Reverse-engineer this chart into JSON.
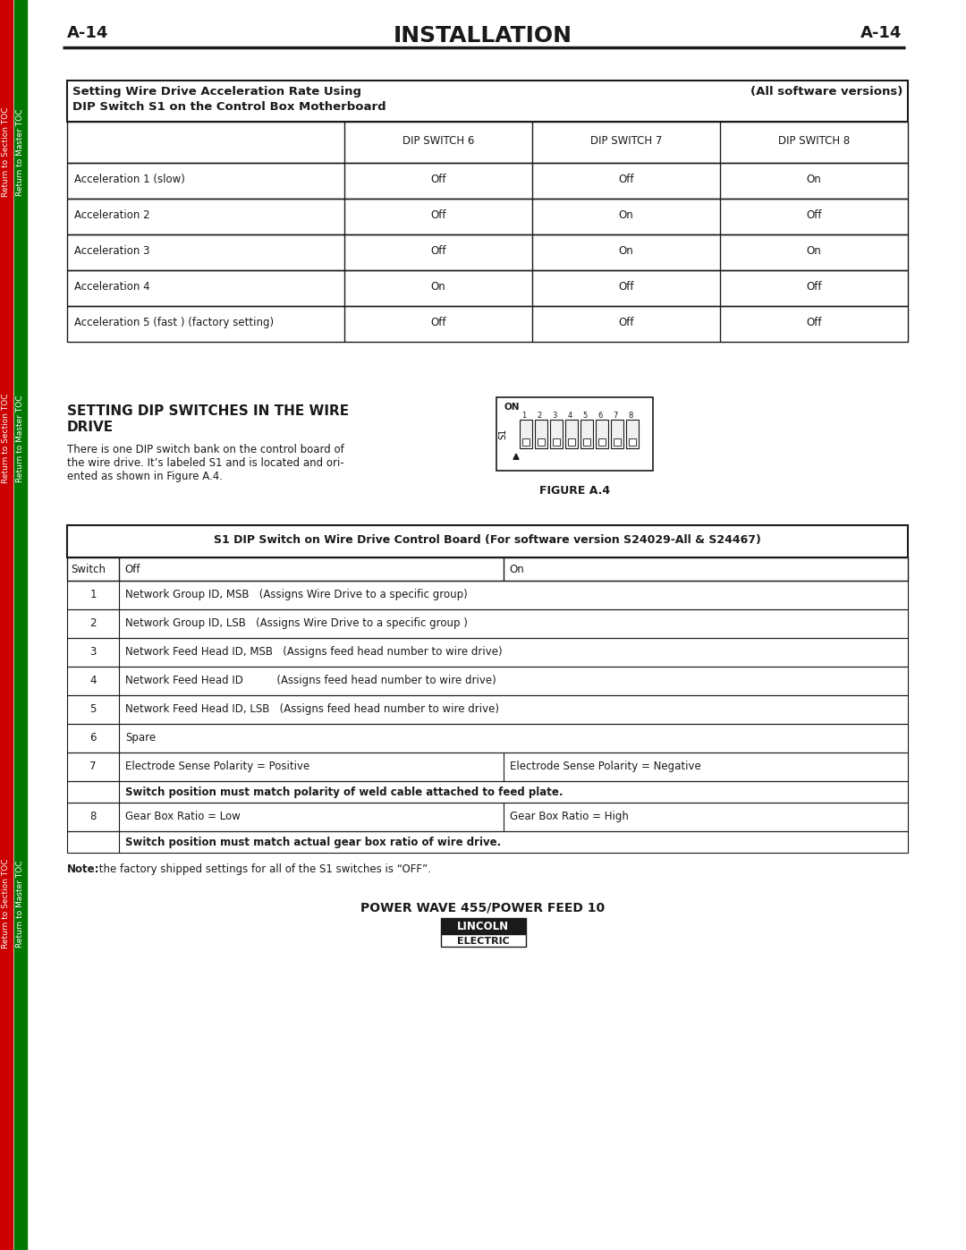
{
  "page_label": "A-14",
  "page_title": "INSTALLATION",
  "bg_color": "#ffffff",
  "sidebar_red": "#cc0000",
  "sidebar_green": "#007700",
  "table1_title_left": "Setting Wire Drive Acceleration Rate Using",
  "table1_title_right": "(All software versions)",
  "table1_title2": "DIP Switch S1 on the Control Box Motherboard",
  "table1_headers": [
    "",
    "DIP SWITCH 6",
    "DIP SWITCH 7",
    "DIP SWITCH 8"
  ],
  "table1_rows": [
    [
      "Acceleration 1 (slow)",
      "Off",
      "Off",
      "On"
    ],
    [
      "Acceleration 2",
      "Off",
      "On",
      "Off"
    ],
    [
      "Acceleration 3",
      "Off",
      "On",
      "On"
    ],
    [
      "Acceleration 4",
      "On",
      "Off",
      "Off"
    ],
    [
      "Acceleration 5 (fast ) (factory setting)",
      "Off",
      "Off",
      "Off"
    ]
  ],
  "section_title_line1": "SETTING DIP SWITCHES IN THE WIRE",
  "section_title_line2": "DRIVE",
  "section_body_lines": [
    "There is one DIP switch bank on the control board of",
    "the wire drive. It’s labeled S1 and is located and ori-",
    "ented as shown in Figure A.4."
  ],
  "figure_label": "FIGURE A.4",
  "table2_title": "S1 DIP Switch on Wire Drive Control Board (For software version S24029-All & S24467)",
  "table2_col_headers": [
    "Switch",
    "Off",
    "On"
  ],
  "table2_rows": [
    {
      "type": "data",
      "switch": "1",
      "off": "Network Group ID, MSB   (Assigns Wire Drive to a specific group)",
      "on": ""
    },
    {
      "type": "data",
      "switch": "2",
      "off": "Network Group ID, LSB   (Assigns Wire Drive to a specific group )",
      "on": ""
    },
    {
      "type": "data",
      "switch": "3",
      "off": "Network Feed Head ID, MSB   (Assigns feed head number to wire drive)",
      "on": ""
    },
    {
      "type": "data",
      "switch": "4",
      "off": "Network Feed Head ID          (Assigns feed head number to wire drive)",
      "on": ""
    },
    {
      "type": "data",
      "switch": "5",
      "off": "Network Feed Head ID, LSB   (Assigns feed head number to wire drive)",
      "on": ""
    },
    {
      "type": "data",
      "switch": "6",
      "off": "Spare",
      "on": ""
    },
    {
      "type": "data",
      "switch": "7",
      "off": "Electrode Sense Polarity = Positive",
      "on": "Electrode Sense Polarity = Negative"
    },
    {
      "type": "note",
      "switch": "",
      "text": "Switch position must match polarity of weld cable attached to feed plate."
    },
    {
      "type": "data",
      "switch": "8",
      "off": "Gear Box Ratio = Low",
      "on": "Gear Box Ratio = High"
    },
    {
      "type": "note",
      "switch": "",
      "text": "Switch position must match actual gear box ratio of wire drive."
    }
  ],
  "note_bold": "Note:",
  "note_rest": " the factory shipped settings for all of the S1 switches is “OFF”.",
  "footer_title": "POWER WAVE 455/POWER FEED 10",
  "sidebar_labels": [
    "Return to Section TOC",
    "Return to Master TOC"
  ]
}
